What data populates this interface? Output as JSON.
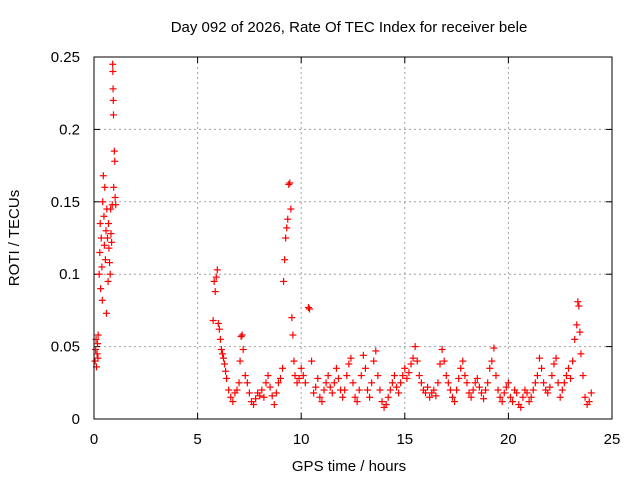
{
  "chart_data": {
    "type": "scatter",
    "title": "Day 092 of 2026, Rate Of TEC Index for receiver bele",
    "xlabel": "GPS time / hours",
    "ylabel": "ROTI / TECUs",
    "xlim": [
      0,
      25
    ],
    "ylim": [
      0,
      0.25
    ],
    "x_ticks": [
      "0",
      "5",
      "10",
      "15",
      "20",
      "25"
    ],
    "y_ticks": [
      "0",
      "0.05",
      "0.1",
      "0.15",
      "0.2",
      "0.25"
    ],
    "grid": true,
    "marker": "plus",
    "color": "#ff0000",
    "points": [
      [
        0.05,
        0.04
      ],
      [
        0.08,
        0.048
      ],
      [
        0.1,
        0.055
      ],
      [
        0.12,
        0.036
      ],
      [
        0.15,
        0.045
      ],
      [
        0.17,
        0.052
      ],
      [
        0.19,
        0.042
      ],
      [
        0.2,
        0.058
      ],
      [
        0.25,
        0.1
      ],
      [
        0.28,
        0.115
      ],
      [
        0.3,
        0.135
      ],
      [
        0.32,
        0.09
      ],
      [
        0.35,
        0.125
      ],
      [
        0.38,
        0.105
      ],
      [
        0.4,
        0.082
      ],
      [
        0.42,
        0.15
      ],
      [
        0.45,
        0.168
      ],
      [
        0.48,
        0.14
      ],
      [
        0.5,
        0.12
      ],
      [
        0.52,
        0.16
      ],
      [
        0.55,
        0.11
      ],
      [
        0.58,
        0.13
      ],
      [
        0.6,
        0.073
      ],
      [
        0.62,
        0.145
      ],
      [
        0.65,
        0.125
      ],
      [
        0.68,
        0.095
      ],
      [
        0.7,
        0.135
      ],
      [
        0.72,
        0.118
      ],
      [
        0.75,
        0.108
      ],
      [
        0.78,
        0.1
      ],
      [
        0.8,
        0.145
      ],
      [
        0.82,
        0.128
      ],
      [
        0.85,
        0.122
      ],
      [
        0.88,
        0.148
      ],
      [
        0.9,
        0.245
      ],
      [
        0.91,
        0.24
      ],
      [
        0.92,
        0.228
      ],
      [
        0.93,
        0.22
      ],
      [
        0.94,
        0.21
      ],
      [
        0.95,
        0.16
      ],
      [
        0.98,
        0.185
      ],
      [
        1.0,
        0.178
      ],
      [
        1.02,
        0.153
      ],
      [
        1.05,
        0.148
      ],
      [
        5.75,
        0.068
      ],
      [
        5.8,
        0.095
      ],
      [
        5.85,
        0.088
      ],
      [
        5.9,
        0.098
      ],
      [
        5.95,
        0.103
      ],
      [
        6.0,
        0.066
      ],
      [
        6.05,
        0.062
      ],
      [
        6.1,
        0.055
      ],
      [
        6.15,
        0.048
      ],
      [
        6.2,
        0.045
      ],
      [
        6.25,
        0.042
      ],
      [
        6.3,
        0.038
      ],
      [
        6.35,
        0.033
      ],
      [
        6.4,
        0.028
      ],
      [
        6.5,
        0.02
      ],
      [
        6.6,
        0.015
      ],
      [
        6.7,
        0.012
      ],
      [
        6.8,
        0.018
      ],
      [
        6.9,
        0.02
      ],
      [
        7.0,
        0.025
      ],
      [
        7.05,
        0.04
      ],
      [
        7.1,
        0.057
      ],
      [
        7.15,
        0.058
      ],
      [
        7.2,
        0.048
      ],
      [
        7.3,
        0.03
      ],
      [
        7.4,
        0.025
      ],
      [
        7.5,
        0.018
      ],
      [
        7.6,
        0.012
      ],
      [
        7.7,
        0.01
      ],
      [
        7.8,
        0.014
      ],
      [
        7.9,
        0.018
      ],
      [
        8.0,
        0.016
      ],
      [
        8.1,
        0.02
      ],
      [
        8.2,
        0.015
      ],
      [
        8.3,
        0.025
      ],
      [
        8.4,
        0.03
      ],
      [
        8.5,
        0.022
      ],
      [
        8.6,
        0.016
      ],
      [
        8.7,
        0.01
      ],
      [
        8.8,
        0.018
      ],
      [
        8.9,
        0.025
      ],
      [
        9.0,
        0.028
      ],
      [
        9.1,
        0.035
      ],
      [
        9.15,
        0.095
      ],
      [
        9.2,
        0.11
      ],
      [
        9.25,
        0.125
      ],
      [
        9.3,
        0.132
      ],
      [
        9.35,
        0.138
      ],
      [
        9.4,
        0.162
      ],
      [
        9.45,
        0.163
      ],
      [
        9.5,
        0.145
      ],
      [
        9.55,
        0.07
      ],
      [
        9.6,
        0.058
      ],
      [
        9.65,
        0.04
      ],
      [
        9.7,
        0.03
      ],
      [
        9.8,
        0.025
      ],
      [
        9.9,
        0.028
      ],
      [
        10.0,
        0.035
      ],
      [
        10.1,
        0.03
      ],
      [
        10.2,
        0.025
      ],
      [
        10.35,
        0.077
      ],
      [
        10.4,
        0.076
      ],
      [
        10.5,
        0.04
      ],
      [
        10.6,
        0.018
      ],
      [
        10.7,
        0.022
      ],
      [
        10.8,
        0.028
      ],
      [
        10.9,
        0.015
      ],
      [
        11.0,
        0.012
      ],
      [
        11.1,
        0.02
      ],
      [
        11.2,
        0.025
      ],
      [
        11.3,
        0.03
      ],
      [
        11.4,
        0.022
      ],
      [
        11.5,
        0.018
      ],
      [
        11.6,
        0.025
      ],
      [
        11.7,
        0.035
      ],
      [
        11.8,
        0.028
      ],
      [
        11.9,
        0.02
      ],
      [
        12.0,
        0.015
      ],
      [
        12.1,
        0.02
      ],
      [
        12.2,
        0.03
      ],
      [
        12.3,
        0.038
      ],
      [
        12.4,
        0.042
      ],
      [
        12.5,
        0.025
      ],
      [
        12.6,
        0.015
      ],
      [
        12.7,
        0.012
      ],
      [
        12.8,
        0.02
      ],
      [
        12.9,
        0.03
      ],
      [
        13.0,
        0.044
      ],
      [
        13.1,
        0.035
      ],
      [
        13.2,
        0.02
      ],
      [
        13.3,
        0.015
      ],
      [
        13.4,
        0.025
      ],
      [
        13.5,
        0.04
      ],
      [
        13.6,
        0.047
      ],
      [
        13.7,
        0.03
      ],
      [
        13.8,
        0.02
      ],
      [
        13.9,
        0.012
      ],
      [
        14.0,
        0.008
      ],
      [
        14.1,
        0.01
      ],
      [
        14.2,
        0.015
      ],
      [
        14.3,
        0.02
      ],
      [
        14.4,
        0.025
      ],
      [
        14.5,
        0.03
      ],
      [
        14.6,
        0.022
      ],
      [
        14.7,
        0.018
      ],
      [
        14.8,
        0.025
      ],
      [
        14.9,
        0.03
      ],
      [
        15.0,
        0.035
      ],
      [
        15.1,
        0.028
      ],
      [
        15.2,
        0.032
      ],
      [
        15.3,
        0.038
      ],
      [
        15.4,
        0.042
      ],
      [
        15.5,
        0.05
      ],
      [
        15.6,
        0.04
      ],
      [
        15.7,
        0.03
      ],
      [
        15.8,
        0.025
      ],
      [
        15.9,
        0.02
      ],
      [
        16.0,
        0.018
      ],
      [
        16.1,
        0.022
      ],
      [
        16.2,
        0.015
      ],
      [
        16.3,
        0.018
      ],
      [
        16.4,
        0.02
      ],
      [
        16.5,
        0.016
      ],
      [
        16.6,
        0.025
      ],
      [
        16.7,
        0.038
      ],
      [
        16.8,
        0.048
      ],
      [
        16.9,
        0.04
      ],
      [
        17.0,
        0.03
      ],
      [
        17.1,
        0.025
      ],
      [
        17.2,
        0.02
      ],
      [
        17.3,
        0.015
      ],
      [
        17.4,
        0.012
      ],
      [
        17.5,
        0.02
      ],
      [
        17.6,
        0.028
      ],
      [
        17.7,
        0.035
      ],
      [
        17.8,
        0.04
      ],
      [
        17.9,
        0.03
      ],
      [
        18.0,
        0.025
      ],
      [
        18.1,
        0.018
      ],
      [
        18.2,
        0.015
      ],
      [
        18.3,
        0.02
      ],
      [
        18.4,
        0.025
      ],
      [
        18.5,
        0.028
      ],
      [
        18.6,
        0.022
      ],
      [
        18.7,
        0.018
      ],
      [
        18.8,
        0.014
      ],
      [
        18.9,
        0.02
      ],
      [
        19.0,
        0.025
      ],
      [
        19.1,
        0.035
      ],
      [
        19.2,
        0.04
      ],
      [
        19.3,
        0.049
      ],
      [
        19.4,
        0.03
      ],
      [
        19.5,
        0.02
      ],
      [
        19.6,
        0.015
      ],
      [
        19.7,
        0.012
      ],
      [
        19.8,
        0.018
      ],
      [
        19.9,
        0.022
      ],
      [
        20.0,
        0.025
      ],
      [
        20.1,
        0.015
      ],
      [
        20.2,
        0.012
      ],
      [
        20.3,
        0.02
      ],
      [
        20.4,
        0.018
      ],
      [
        20.5,
        0.01
      ],
      [
        20.6,
        0.008
      ],
      [
        20.7,
        0.015
      ],
      [
        20.8,
        0.02
      ],
      [
        20.9,
        0.018
      ],
      [
        21.0,
        0.012
      ],
      [
        21.1,
        0.015
      ],
      [
        21.2,
        0.02
      ],
      [
        21.3,
        0.025
      ],
      [
        21.4,
        0.03
      ],
      [
        21.5,
        0.042
      ],
      [
        21.6,
        0.035
      ],
      [
        21.7,
        0.025
      ],
      [
        21.8,
        0.02
      ],
      [
        21.9,
        0.018
      ],
      [
        22.0,
        0.022
      ],
      [
        22.1,
        0.03
      ],
      [
        22.2,
        0.038
      ],
      [
        22.3,
        0.042
      ],
      [
        22.4,
        0.025
      ],
      [
        22.5,
        0.015
      ],
      [
        22.6,
        0.02
      ],
      [
        22.7,
        0.025
      ],
      [
        22.8,
        0.03
      ],
      [
        22.9,
        0.035
      ],
      [
        23.0,
        0.028
      ],
      [
        23.1,
        0.04
      ],
      [
        23.2,
        0.055
      ],
      [
        23.3,
        0.065
      ],
      [
        23.35,
        0.081
      ],
      [
        23.4,
        0.078
      ],
      [
        23.45,
        0.06
      ],
      [
        23.5,
        0.045
      ],
      [
        23.6,
        0.03
      ],
      [
        23.7,
        0.015
      ],
      [
        23.8,
        0.01
      ],
      [
        23.9,
        0.012
      ],
      [
        24.0,
        0.018
      ]
    ]
  }
}
